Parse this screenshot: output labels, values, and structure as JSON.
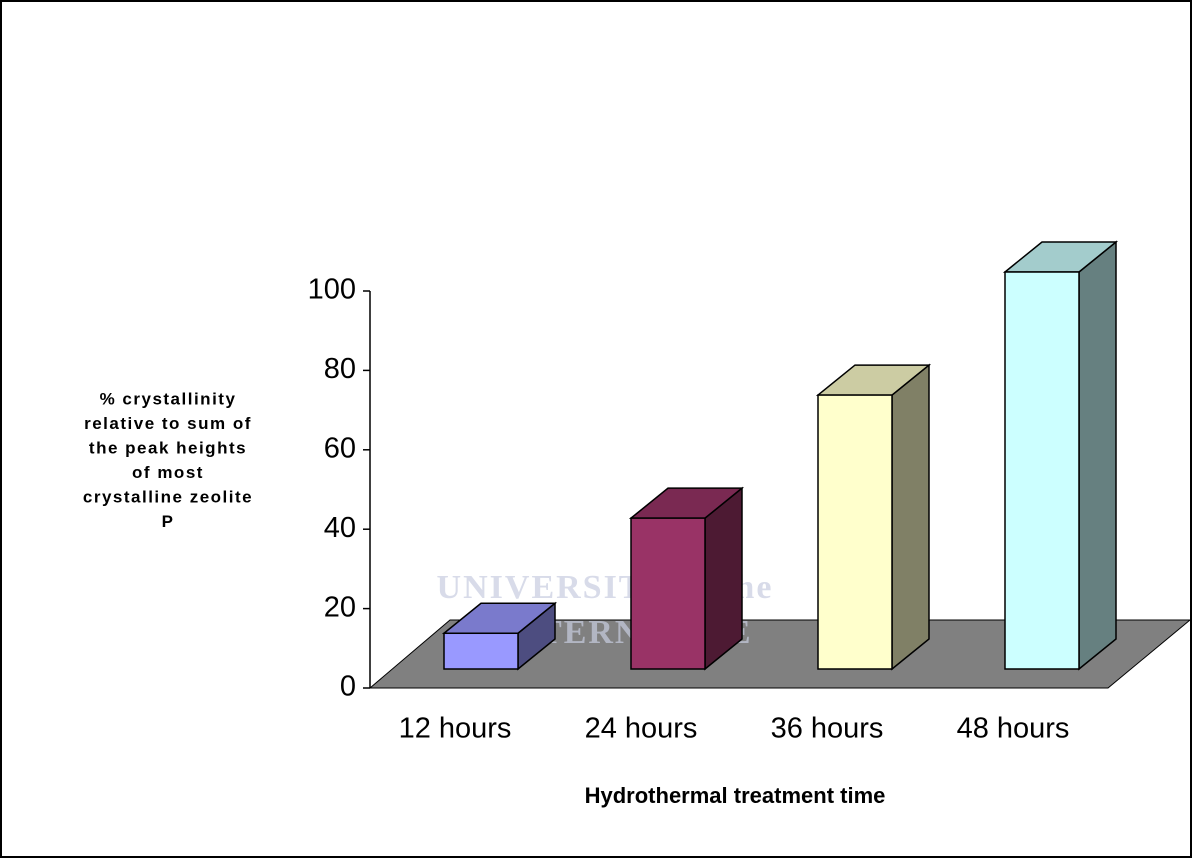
{
  "chart_data": {
    "type": "bar3d",
    "ylabel": [
      "% crystallinity",
      "relative to sum of",
      "the peak heights",
      "of most",
      "crystalline zeolite",
      "P"
    ],
    "xlabel": "Hydrothermal treatment time",
    "categories": [
      "12 hours",
      "24 hours",
      "36 hours",
      "48 hours"
    ],
    "values": [
      9,
      38,
      69,
      100
    ],
    "colors": [
      "#9999ff",
      "#993366",
      "#ffffcc",
      "#ccffff"
    ],
    "ylim": [
      0,
      100
    ],
    "yticks": [
      0,
      20,
      40,
      60,
      80,
      100
    ],
    "watermark": [
      "UNIVERSITY of the",
      "WESTERN CAPE"
    ]
  }
}
